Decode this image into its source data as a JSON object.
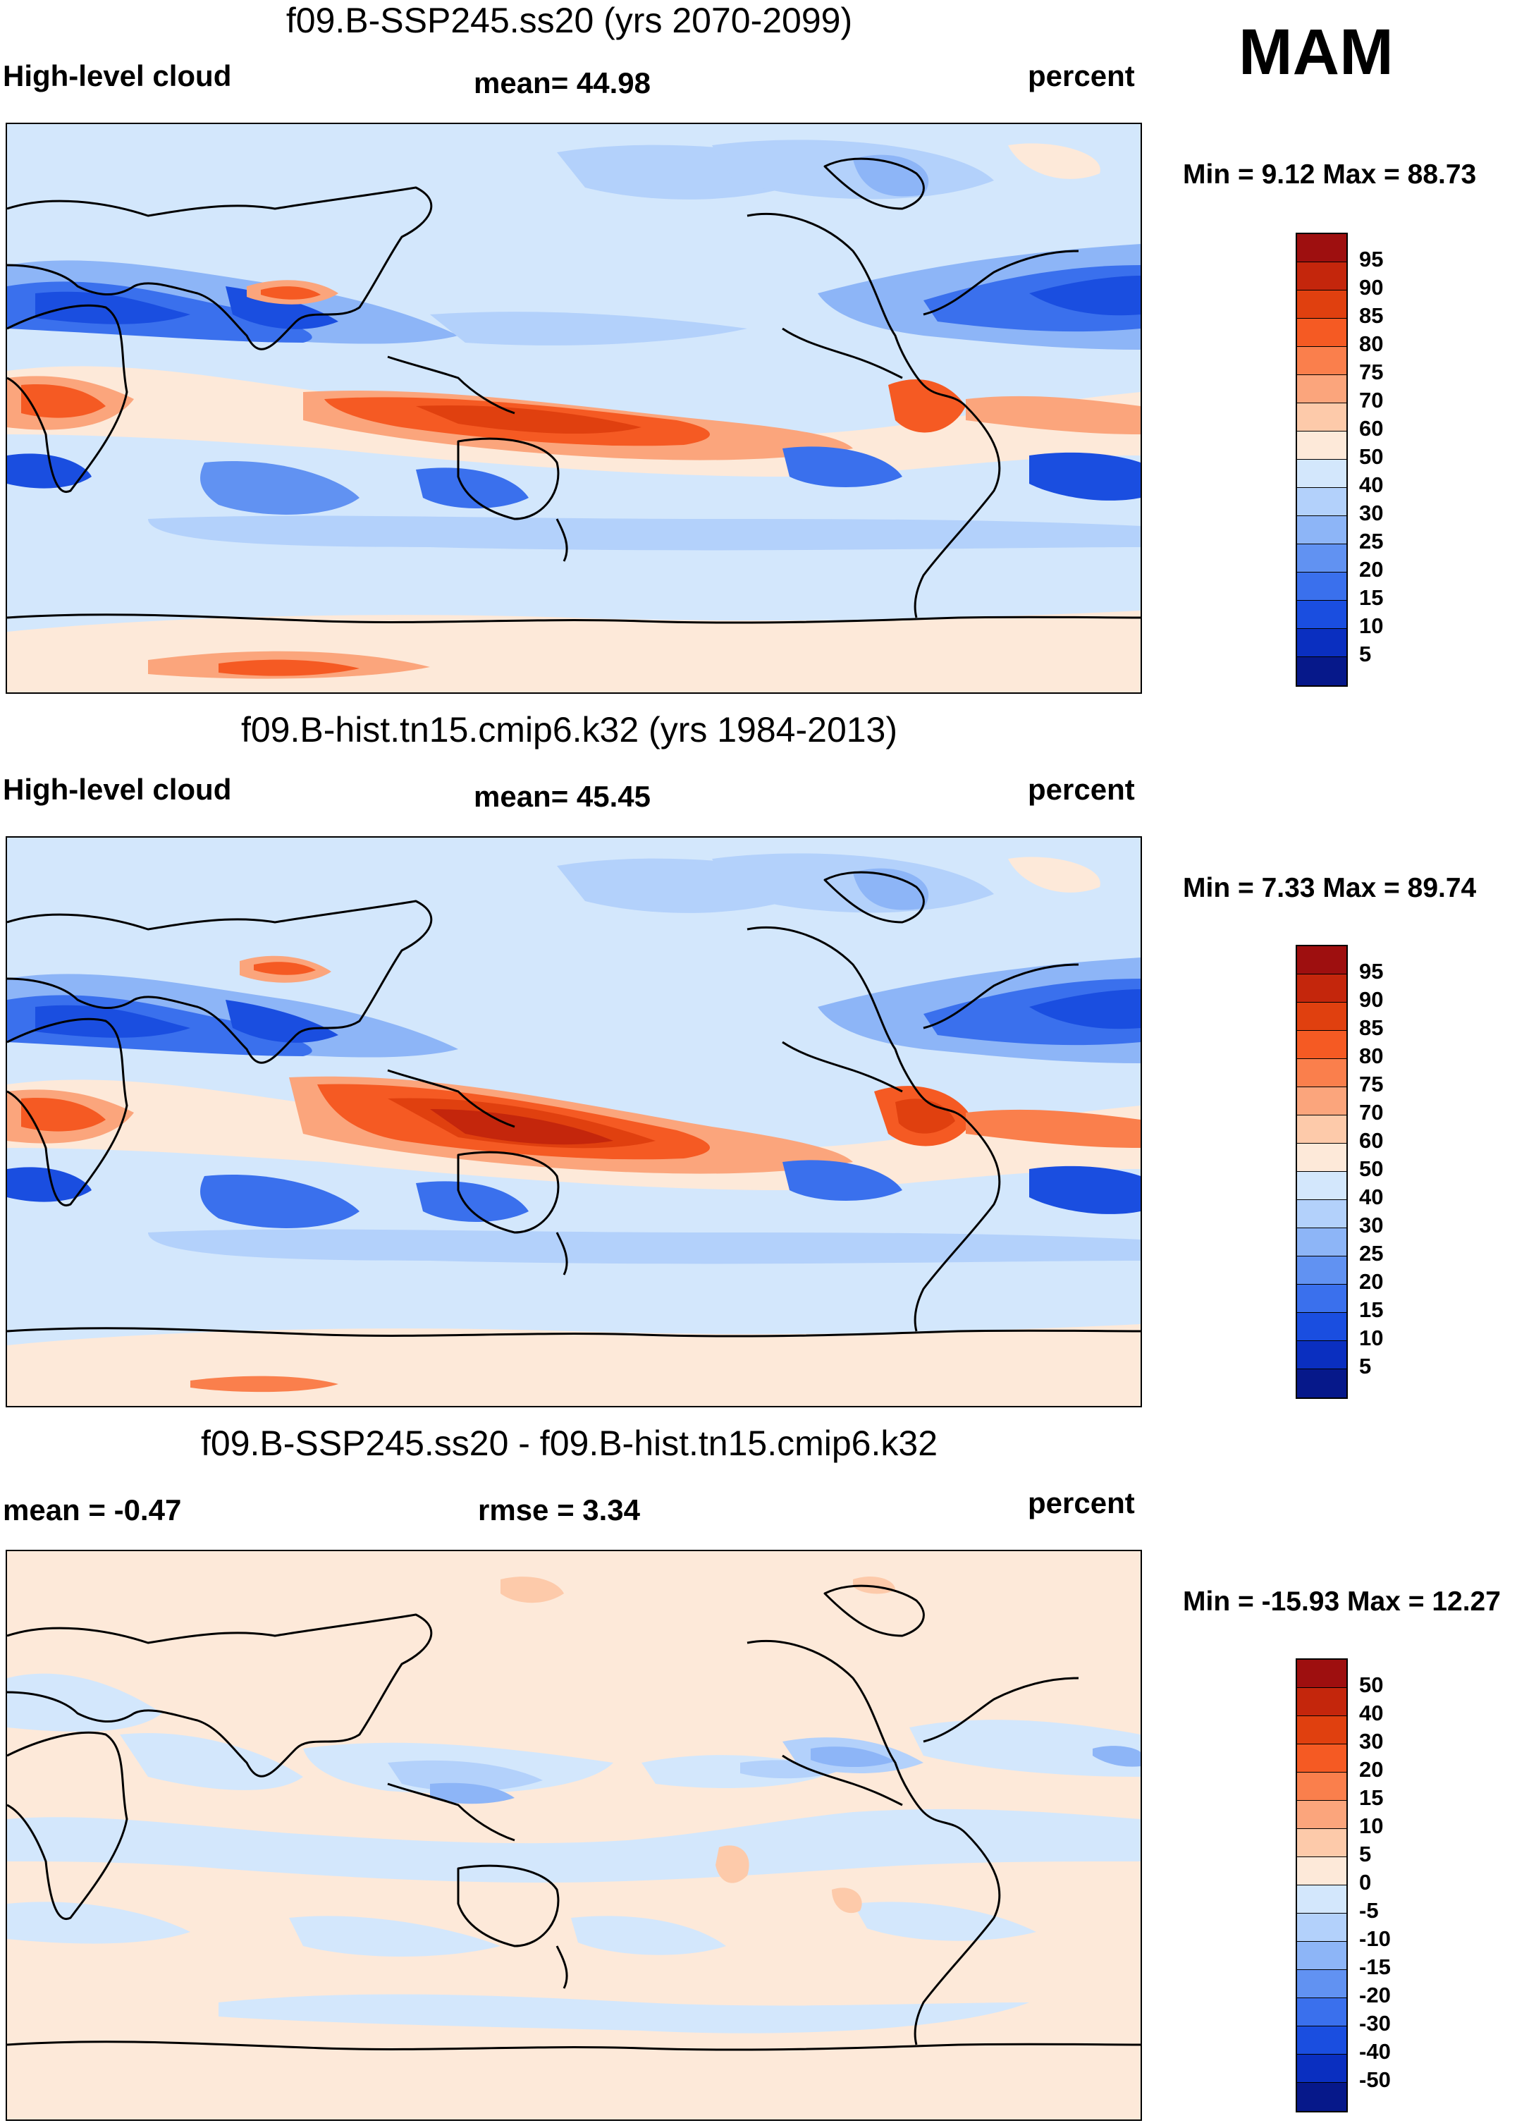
{
  "season": "MAM",
  "panels": [
    {
      "title": "f09.B-SSP245.ss20 (yrs 2070-2099)",
      "left_label": "High-level cloud",
      "center_label": "mean=  44.98",
      "right_label": "percent",
      "minmax": "Min =   9.12 Max =  88.73",
      "variable": "High-level cloud",
      "units": "percent",
      "mean": 44.98,
      "min": 9.12,
      "max": 88.73
    },
    {
      "title": "f09.B-hist.tn15.cmip6.k32 (yrs 1984-2013)",
      "left_label": "High-level cloud",
      "center_label": "mean=  45.45",
      "right_label": "percent",
      "minmax": "Min =   7.33 Max =  89.74",
      "variable": "High-level cloud",
      "units": "percent",
      "mean": 45.45,
      "min": 7.33,
      "max": 89.74
    },
    {
      "title": "f09.B-SSP245.ss20 - f09.B-hist.tn15.cmip6.k32",
      "left_label": "mean =  -0.47",
      "center_label": "rmse =    3.34",
      "right_label": "percent",
      "minmax": "Min = -15.93 Max =  12.27",
      "units": "percent",
      "mean": -0.47,
      "rmse": 3.34,
      "min": -15.93,
      "max": 12.27
    }
  ],
  "colorbars": {
    "absolute": {
      "labels": [
        "95",
        "90",
        "85",
        "80",
        "75",
        "70",
        "60",
        "50",
        "40",
        "30",
        "25",
        "20",
        "15",
        "10",
        "5"
      ],
      "colors": [
        "#9e0f0f",
        "#c4260c",
        "#e0400f",
        "#f55a23",
        "#fa7f4c",
        "#fba57c",
        "#fdcaaa",
        "#fde9d9",
        "#d3e7fc",
        "#b3d1fb",
        "#8db5f7",
        "#6192f2",
        "#3a70ed",
        "#1a4ee0",
        "#0a2fc0",
        "#06188a"
      ]
    },
    "difference": {
      "labels": [
        "50",
        "40",
        "30",
        "20",
        "15",
        "10",
        "5",
        "0",
        "-5",
        "-10",
        "-15",
        "-20",
        "-30",
        "-40",
        "-50"
      ],
      "colors": [
        "#9e0f0f",
        "#c4260c",
        "#e0400f",
        "#f55a23",
        "#fa7f4c",
        "#fba57c",
        "#fdcaaa",
        "#fde9d9",
        "#d3e7fc",
        "#b3d1fb",
        "#8db5f7",
        "#6192f2",
        "#3a70ed",
        "#1a4ee0",
        "#0a2fc0",
        "#06188a"
      ]
    }
  },
  "chart_data": {
    "type": "heatmap",
    "projection": "global cylindrical equidistant, Pacific-centered",
    "panels": [
      {
        "title": "f09.B-SSP245.ss20 (yrs 2070-2099)",
        "mean": 44.98,
        "min": 9.12,
        "max": 88.73
      },
      {
        "title": "f09.B-hist.tn15.cmip6.k32 (yrs 1984-2013)",
        "mean": 45.45,
        "min": 7.33,
        "max": 89.74
      },
      {
        "title": "f09.B-SSP245.ss20 - f09.B-hist.tn15.cmip6.k32",
        "mean": -0.47,
        "rmse": 3.34,
        "min": -15.93,
        "max": 12.27
      }
    ],
    "contour_levels_absolute": [
      5,
      10,
      15,
      20,
      25,
      30,
      40,
      50,
      60,
      70,
      75,
      80,
      85,
      90,
      95
    ],
    "contour_levels_difference": [
      -50,
      -40,
      -30,
      -20,
      -15,
      -10,
      -5,
      0,
      5,
      10,
      15,
      20,
      30,
      40,
      50
    ]
  }
}
